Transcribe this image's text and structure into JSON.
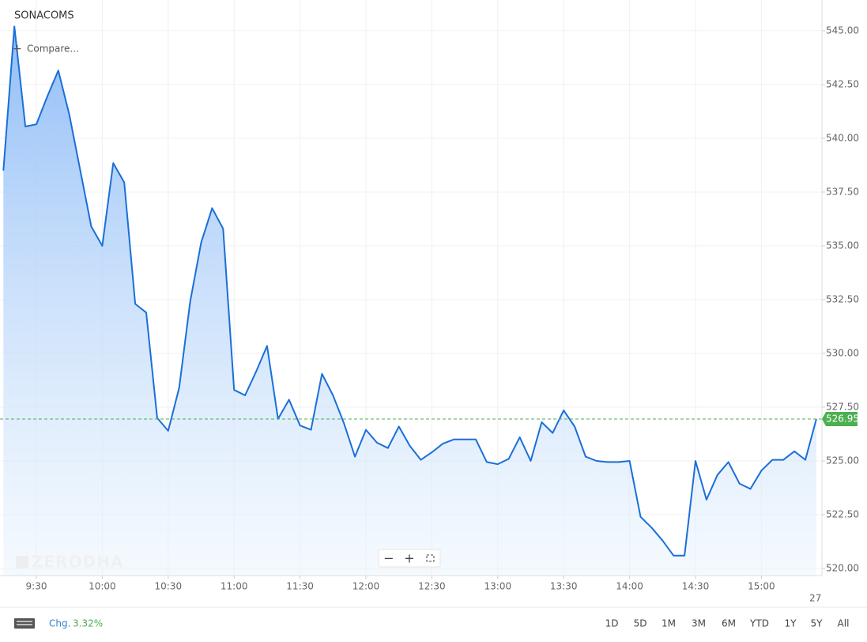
{
  "chart_data": {
    "type": "line",
    "title": "SONACOMS",
    "compare_label": "Compare...",
    "watermark": "ZERODHA",
    "x": [
      "9:15",
      "9:20",
      "9:25",
      "9:30",
      "9:35",
      "9:40",
      "9:45",
      "9:50",
      "9:55",
      "10:00",
      "10:05",
      "10:10",
      "10:15",
      "10:20",
      "10:25",
      "10:30",
      "10:35",
      "10:40",
      "10:45",
      "10:50",
      "10:55",
      "11:00",
      "11:05",
      "11:10",
      "11:15",
      "11:20",
      "11:25",
      "11:30",
      "11:35",
      "11:40",
      "11:45",
      "11:50",
      "11:55",
      "12:00",
      "12:05",
      "12:10",
      "12:15",
      "12:20",
      "12:25",
      "12:30",
      "12:35",
      "12:40",
      "12:45",
      "12:50",
      "12:55",
      "13:00",
      "13:05",
      "13:10",
      "13:15",
      "13:20",
      "13:25",
      "13:30",
      "13:35",
      "13:40",
      "13:45",
      "13:50",
      "13:55",
      "14:00",
      "14:05",
      "14:10",
      "14:15",
      "14:20",
      "14:25",
      "14:30",
      "14:35",
      "14:40",
      "14:45",
      "14:50",
      "14:55",
      "15:00",
      "15:05",
      "15:10",
      "15:15",
      "15:20",
      "15:25"
    ],
    "series": [
      {
        "name": "SONACOMS",
        "color": "#1a6fd9",
        "values": [
          538.5,
          545.2,
          540.55,
          540.65,
          541.95,
          543.15,
          541.1,
          538.5,
          535.9,
          535.0,
          538.85,
          537.95,
          532.3,
          531.9,
          527.0,
          526.4,
          528.4,
          532.4,
          535.15,
          536.75,
          535.8,
          528.3,
          528.05,
          529.15,
          530.35,
          526.95,
          527.85,
          526.65,
          526.45,
          529.05,
          528.05,
          526.75,
          525.2,
          526.45,
          525.85,
          525.6,
          526.6,
          525.7,
          525.05,
          525.4,
          525.8,
          526.0,
          526.0,
          526.0,
          524.95,
          524.85,
          525.1,
          526.1,
          525.0,
          526.8,
          526.3,
          527.35,
          526.6,
          525.2,
          525.0,
          524.95,
          524.95,
          525.0,
          522.4,
          521.9,
          521.3,
          520.6,
          520.6,
          525.0,
          523.2,
          524.35,
          524.95,
          523.95,
          523.7,
          524.55,
          525.05,
          525.05,
          525.45,
          525.05,
          526.95
        ]
      }
    ],
    "xticks": [
      "9:30",
      "10:00",
      "10:30",
      "11:00",
      "11:30",
      "12:00",
      "12:30",
      "13:00",
      "13:30",
      "14:00",
      "14:30",
      "15:00"
    ],
    "x_edge_label": "27",
    "ylim": [
      519.67,
      546.43
    ],
    "yticks": [
      {
        "value": 520,
        "label": "520.00"
      },
      {
        "value": 522.5,
        "label": "522.50"
      },
      {
        "value": 525,
        "label": "525.00"
      },
      {
        "value": 527.5,
        "label": "527.50"
      },
      {
        "value": 530,
        "label": "530.00"
      },
      {
        "value": 532.5,
        "label": "532.50"
      },
      {
        "value": 535,
        "label": "535.00"
      },
      {
        "value": 537.5,
        "label": "537.50"
      },
      {
        "value": 540,
        "label": "540.00"
      },
      {
        "value": 542.5,
        "label": "542.50"
      },
      {
        "value": 545,
        "label": "545.00"
      }
    ],
    "grid": true,
    "last_price": 526.95,
    "last_price_color": "#4caf50",
    "change_label": "Chg.",
    "change": "3.32%",
    "periods": [
      "1D",
      "5D",
      "1M",
      "3M",
      "6M",
      "YTD",
      "1Y",
      "5Y",
      "All"
    ]
  }
}
